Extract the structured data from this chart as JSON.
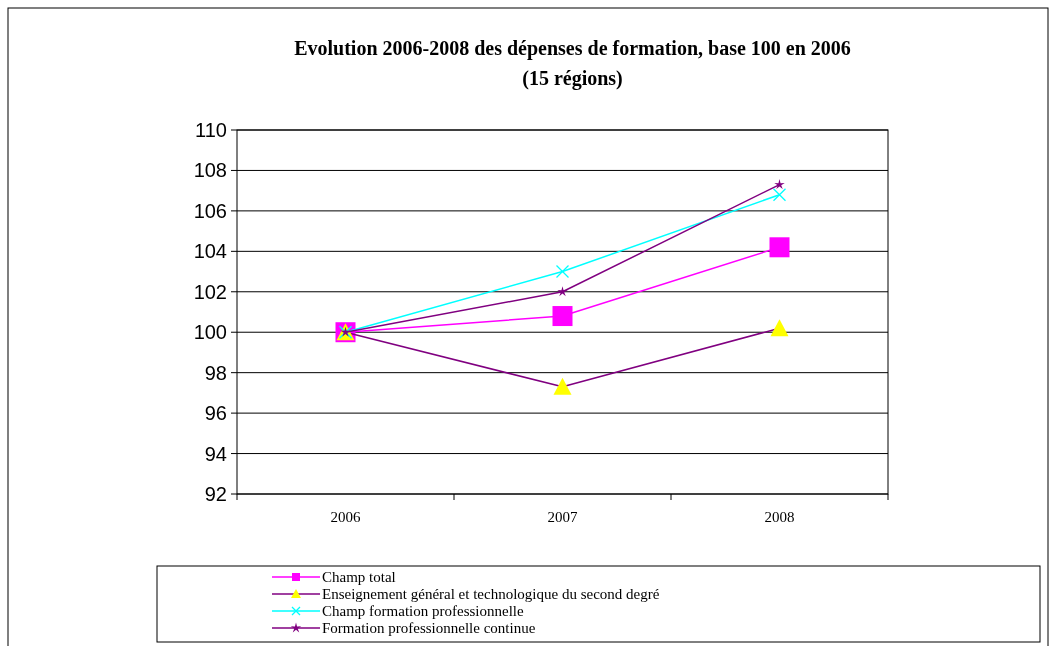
{
  "chart_data": {
    "type": "line",
    "title": "Evolution 2006-2008 des dépenses de formation, base 100 en 2006 (15 régions)",
    "categories": [
      "2006",
      "2007",
      "2008"
    ],
    "series": [
      {
        "name": "Champ total",
        "color": "#ff00ff",
        "marker": "square",
        "values": [
          100,
          100.8,
          104.2
        ]
      },
      {
        "name": "Enseignement général et technologique du second degré",
        "color": "#800080",
        "colors": [
          "#ffff00",
          "#ffff00",
          "#ffff00"
        ],
        "marker": "triangle",
        "values": [
          100,
          97.3,
          100.2
        ]
      },
      {
        "name": "Champ formation professionnelle",
        "color": "#00ffff",
        "marker": "cross",
        "values": [
          100,
          103,
          106.8
        ]
      },
      {
        "name": "Formation professionnelle continue",
        "color": "#800080",
        "marker": "star",
        "values": [
          100,
          102,
          107.3
        ]
      }
    ],
    "ylim": [
      92,
      110
    ],
    "yticks": [
      92,
      94,
      96,
      98,
      100,
      102,
      104,
      106,
      108,
      110
    ],
    "grid": "y",
    "legend": "bottom"
  }
}
